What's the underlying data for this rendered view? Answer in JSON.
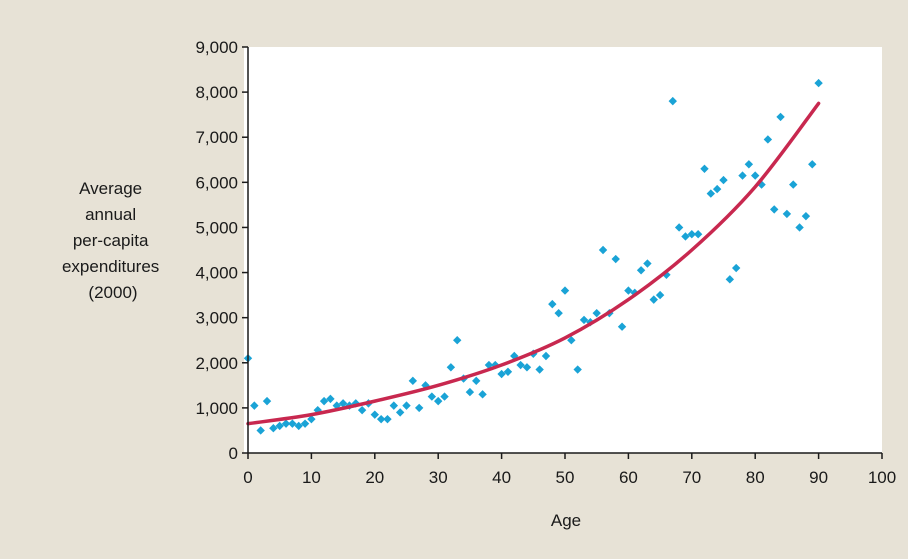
{
  "chart_data": {
    "type": "scatter",
    "title": "",
    "xlabel": "Age",
    "ylabel_lines": [
      "Average",
      "annual",
      "per-capita",
      "expenditures",
      "(2000)"
    ],
    "xlim": [
      0,
      100
    ],
    "ylim": [
      0,
      9000
    ],
    "xticks": [
      0,
      10,
      20,
      30,
      40,
      50,
      60,
      70,
      80,
      90,
      100
    ],
    "xtick_labels": [
      "0",
      "10",
      "20",
      "30",
      "40",
      "50",
      "60",
      "70",
      "80",
      "90",
      "100"
    ],
    "yticks": [
      0,
      1000,
      2000,
      3000,
      4000,
      5000,
      6000,
      7000,
      8000,
      9000
    ],
    "ytick_labels": [
      "0",
      "1,000",
      "2,000",
      "3,000",
      "4,000",
      "5,000",
      "6,000",
      "7,000",
      "8,000",
      "9,000"
    ],
    "grid": false,
    "colors": {
      "background": "#e7e2d6",
      "plot_area": "#ffffff",
      "points": "#1aa3d6",
      "trend": "#c8284f",
      "axis": "#1a1a1a"
    },
    "series": [
      {
        "kind": "scatter",
        "x": [
          0,
          1,
          2,
          3,
          4,
          5,
          6,
          7,
          8,
          9,
          10,
          11,
          12,
          13,
          14,
          15,
          16,
          17,
          18,
          19,
          20,
          21,
          22,
          23,
          24,
          25,
          26,
          27,
          28,
          29,
          30,
          31,
          32,
          33,
          34,
          35,
          36,
          37,
          38,
          39,
          40,
          41,
          42,
          43,
          44,
          45,
          46,
          47,
          48,
          49,
          50,
          51,
          52,
          53,
          54,
          55,
          56,
          57,
          58,
          59,
          60,
          61,
          62,
          63,
          64,
          65,
          66,
          67,
          68,
          69,
          70,
          71,
          72,
          73,
          74,
          75,
          76,
          77,
          78,
          79,
          80,
          81,
          82,
          83,
          84,
          85,
          86,
          87,
          88,
          89,
          90
        ],
        "y": [
          2100,
          1050,
          500,
          1150,
          550,
          600,
          650,
          650,
          600,
          650,
          750,
          950,
          1150,
          1200,
          1050,
          1100,
          1050,
          1100,
          950,
          1100,
          850,
          750,
          750,
          1050,
          900,
          1050,
          1600,
          1000,
          1500,
          1250,
          1150,
          1250,
          1900,
          2500,
          1650,
          1350,
          1600,
          1300,
          1950,
          1950,
          1750,
          1800,
          2150,
          1950,
          1900,
          2200,
          1850,
          2150,
          3300,
          3100,
          3600,
          2500,
          1850,
          2950,
          2900,
          3100,
          4500,
          3100,
          4300,
          2800,
          3600,
          3550,
          4050,
          4200,
          3400,
          3500,
          3950,
          7800,
          5000,
          4800,
          4850,
          4850,
          6300,
          5750,
          5850,
          6050,
          3850,
          4100,
          6150,
          6400,
          6150,
          5950,
          6950,
          5400,
          7450,
          5300,
          5950,
          5000,
          5250,
          6400,
          8200
        ]
      },
      {
        "kind": "trend",
        "x": [
          0,
          10,
          20,
          30,
          40,
          50,
          60,
          70,
          80,
          90
        ],
        "y": [
          650,
          850,
          1150,
          1500,
          1950,
          2550,
          3400,
          4500,
          5900,
          7750
        ]
      }
    ]
  }
}
